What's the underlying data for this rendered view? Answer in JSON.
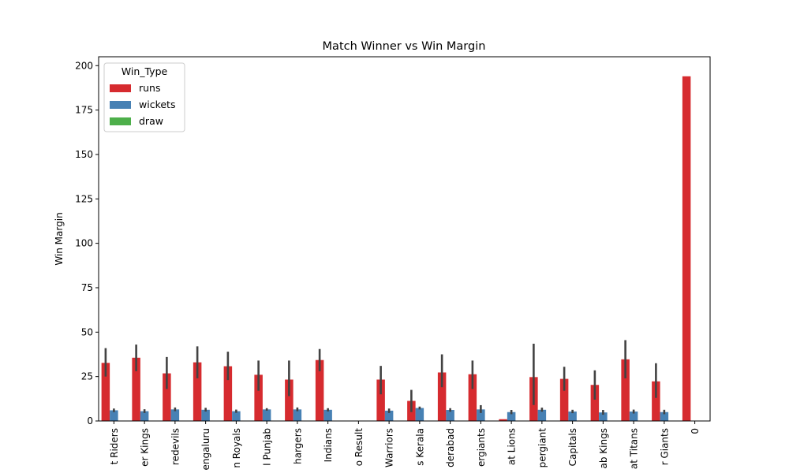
{
  "chart_data": {
    "type": "bar",
    "title": "Match Winner vs Win Margin",
    "xlabel": "",
    "ylabel": "Win Margin",
    "ylim": [
      0,
      205
    ],
    "yticks": [
      0,
      25,
      50,
      75,
      100,
      125,
      150,
      175,
      200
    ],
    "categories": [
      "t Riders",
      "er Kings",
      "redevils",
      "engaluru",
      "n Royals",
      "I Punjab",
      "hargers",
      "Indians",
      "o Result",
      "Warriors",
      "s Kerala",
      "derabad",
      "ergiants",
      "at Lions",
      "pergiant",
      "Capitals",
      "ab Kings",
      "at Titans",
      "r Giants",
      "0"
    ],
    "legend": {
      "title": "Win_Type",
      "position": "upper left"
    },
    "grid": false,
    "series": [
      {
        "name": "runs",
        "color": "#d62b2f",
        "values": [
          32.7,
          35.6,
          26.8,
          33.0,
          30.8,
          26.0,
          23.3,
          34.3,
          null,
          23.3,
          11.3,
          27.3,
          26.3,
          1.0,
          24.7,
          23.7,
          20.3,
          34.7,
          22.3,
          194
        ],
        "err_low": [
          25,
          28,
          18,
          24,
          23,
          17,
          14,
          28,
          null,
          15,
          5,
          19,
          18,
          null,
          9,
          17,
          12,
          24,
          13,
          null
        ],
        "err_high": [
          41,
          43,
          36,
          42,
          39,
          34,
          34,
          40.5,
          null,
          31,
          17.5,
          37.5,
          34,
          null,
          43.5,
          30.5,
          28.5,
          45.5,
          32.5,
          null
        ]
      },
      {
        "name": "wickets",
        "color": "#4781b4",
        "values": [
          6.0,
          5.5,
          6.5,
          6.3,
          5.5,
          6.5,
          6.5,
          6.3,
          null,
          5.8,
          7.3,
          6.2,
          6.5,
          5.0,
          6.3,
          5.3,
          4.8,
          5.3,
          5.0,
          null
        ],
        "err_low": [
          5,
          4.5,
          5.5,
          5.3,
          4.6,
          5.8,
          5.5,
          5.4,
          null,
          4.5,
          6.5,
          5.2,
          4.5,
          3.8,
          5.2,
          4.4,
          3.5,
          4.2,
          3.8,
          null
        ],
        "err_high": [
          7,
          6.6,
          7.6,
          7.4,
          6.4,
          7.2,
          7.6,
          7.2,
          null,
          7.0,
          8.1,
          7.2,
          8.9,
          6.2,
          7.5,
          6.3,
          6.2,
          6.4,
          6.3,
          null
        ]
      },
      {
        "name": "draw",
        "color": "#4daf4a",
        "values": [
          null,
          null,
          null,
          null,
          null,
          null,
          null,
          null,
          null,
          null,
          null,
          null,
          null,
          null,
          null,
          null,
          null,
          null,
          null,
          null
        ]
      }
    ]
  }
}
